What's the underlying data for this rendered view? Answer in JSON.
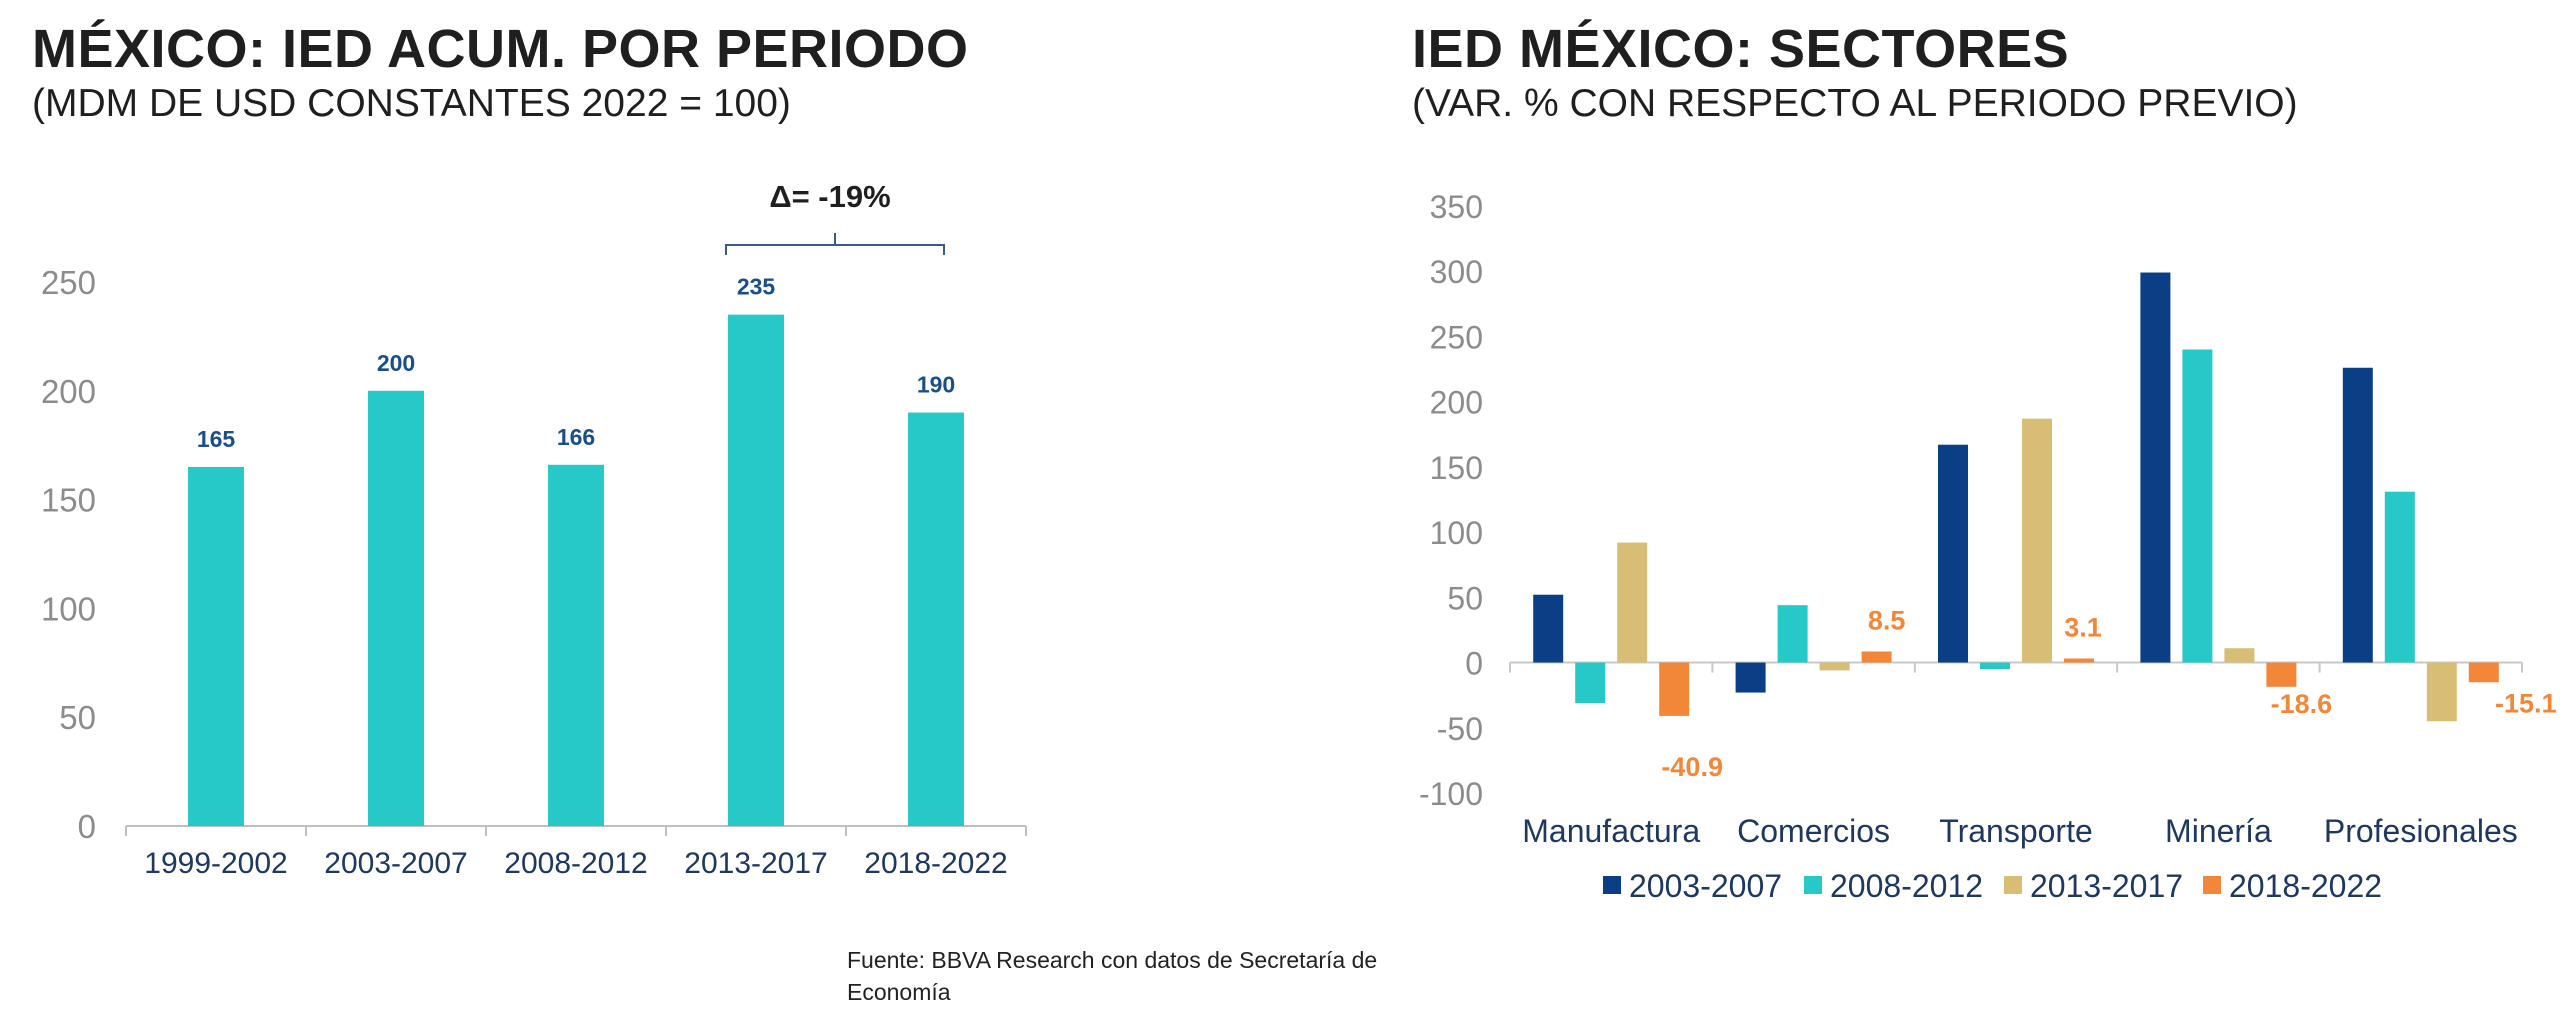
{
  "left_chart": {
    "title": "MÉXICO: IED ACUM. POR PERIODO",
    "subtitle": "(MDM DE USD CONSTANTES 2022 = 100)"
  },
  "right_chart": {
    "title": "IED MÉXICO: SECTORES",
    "subtitle": "(VAR. % CON RESPECTO AL PERIODO PREVIO)"
  },
  "source": "Fuente: BBVA Research con datos de Secretaría de Economía",
  "colors": {
    "teal": "#26C9C8",
    "navy": "#0A3F86",
    "tan": "#D7BE74",
    "orange": "#F2873A",
    "label_navy": "#1B4F8A",
    "label_orange": "#F2873A",
    "axis_text": "#8C8C8C",
    "cat_text": "#1F3860"
  },
  "chart_data": [
    {
      "type": "bar",
      "title": "MÉXICO: IED ACUM. POR PERIODO",
      "subtitle": "(MDM DE USD CONSTANTES 2022 = 100)",
      "categories": [
        "1999-2002",
        "2003-2007",
        "2008-2012",
        "2013-2017",
        "2018-2022"
      ],
      "values": [
        165,
        200,
        166,
        235,
        190
      ],
      "data_labels": [
        "165",
        "200",
        "166",
        "235",
        "190"
      ],
      "ylim": [
        0,
        250
      ],
      "yticks": [
        "0",
        "50",
        "100",
        "150",
        "200",
        "250"
      ],
      "annotation": "Δ= -19%",
      "grid": false
    },
    {
      "type": "bar",
      "title": "IED MÉXICO: SECTORES",
      "subtitle": "(VAR. % CON RESPECTO AL PERIODO PREVIO)",
      "categories": [
        "Manufactura",
        "Comercios",
        "Transporte",
        "Minería",
        "Profesionales"
      ],
      "series": [
        {
          "name": "2003-2007",
          "values": [
            52,
            -23,
            167,
            299,
            226
          ]
        },
        {
          "name": "2008-2012",
          "values": [
            -31,
            44,
            -5,
            240,
            131
          ]
        },
        {
          "name": "2013-2017",
          "values": [
            92,
            -6,
            187,
            11,
            -45
          ]
        },
        {
          "name": "2018-2022",
          "values": [
            -40.9,
            8.5,
            3.1,
            -18.6,
            -15.1
          ]
        }
      ],
      "highlight_labels": [
        "-40.9",
        "8.5",
        "3.1",
        "-18.6",
        "-15.1"
      ],
      "ylim": [
        -100,
        350
      ],
      "yticks": [
        "-100",
        "-50",
        "0",
        "50",
        "100",
        "150",
        "200",
        "250",
        "300",
        "350"
      ],
      "legend_position": "bottom",
      "grid": false
    }
  ]
}
